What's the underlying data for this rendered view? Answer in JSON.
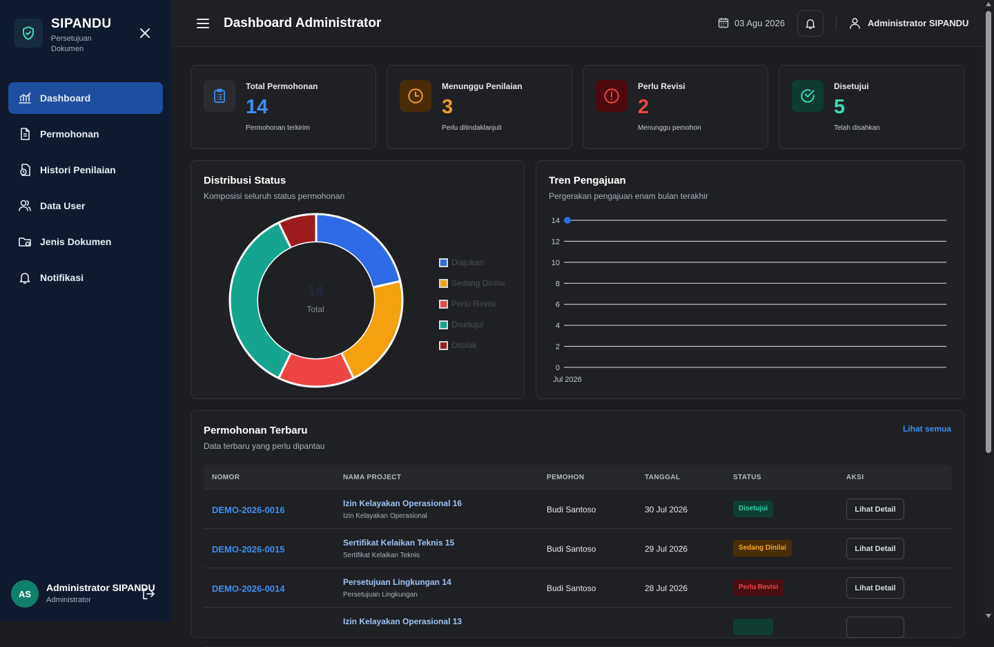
{
  "brand": {
    "title": "SIPANDU",
    "subtitle": "Persetujuan Dokumen"
  },
  "sidebar": {
    "items": [
      {
        "label": "Dashboard",
        "icon": "chart-line-icon",
        "active": true
      },
      {
        "label": "Permohonan",
        "icon": "document-icon",
        "active": false
      },
      {
        "label": "Histori Penilaian",
        "icon": "history-icon",
        "active": false
      },
      {
        "label": "Data User",
        "icon": "users-icon",
        "active": false
      },
      {
        "label": "Jenis Dokumen",
        "icon": "folder-icon",
        "active": false
      },
      {
        "label": "Notifikasi",
        "icon": "bell-icon",
        "active": false
      }
    ],
    "user": {
      "initials": "AS",
      "name": "Administrator SIPANDU",
      "role": "Administrator"
    }
  },
  "topbar": {
    "title": "Dashboard Administrator",
    "date": "03 Agu 2026",
    "user": "Administrator SIPANDU"
  },
  "stats": [
    {
      "label": "Total Permohonan",
      "value": "14",
      "sub": "Permohonan terkirim",
      "color": "#3d8ef0",
      "icon": "clipboard-icon"
    },
    {
      "label": "Menunggu Penilaian",
      "value": "3",
      "sub": "Perlu ditindaklanjuti",
      "color": "#f29b25",
      "icon": "clock-icon"
    },
    {
      "label": "Perlu Revisi",
      "value": "2",
      "sub": "Menunggu pemohon",
      "color": "#ef4444",
      "icon": "alert-circle-icon"
    },
    {
      "label": "Disetujui",
      "value": "5",
      "sub": "Telah disahkan",
      "color": "#3ddbb5",
      "icon": "check-circle-icon"
    }
  ],
  "distribusi": {
    "title": "Distribusi Status",
    "subtitle": "Komposisi seluruh status permohonan",
    "center_value": "14",
    "center_label": "Total"
  },
  "tren": {
    "title": "Tren Pengajuan",
    "subtitle": "Pergerakan pengajuan enam bulan terakhir"
  },
  "chart_data": [
    {
      "type": "pie",
      "categories": [
        "Diajukan",
        "Sedang Dinilai",
        "Perlu Revisi",
        "Disetujui",
        "Ditolak"
      ],
      "values": [
        3,
        3,
        2,
        5,
        1
      ],
      "colors": [
        "#2f6be6",
        "#f5a10f",
        "#ef4444",
        "#15a58f",
        "#9b1c1c"
      ],
      "legend_position": "right"
    },
    {
      "type": "line",
      "x": [
        "Jul 2026"
      ],
      "series": [
        {
          "values": [
            14
          ],
          "color": "#2f6be6"
        }
      ],
      "ylim": [
        0,
        14
      ],
      "yticks": [
        0,
        2,
        4,
        6,
        8,
        10,
        12,
        14
      ],
      "grid": true
    }
  ],
  "recent": {
    "title": "Permohonan Terbaru",
    "subtitle": "Data terbaru yang perlu dipantau",
    "link_all": "Lihat semua",
    "columns": [
      "NOMOR",
      "NAMA PROJECT",
      "PEMOHON",
      "TANGGAL",
      "STATUS",
      "AKSI"
    ],
    "rows": [
      {
        "nomor": "DEMO-2026-0016",
        "nama": "Izin Kelayakan Operasional 16",
        "jenis": "Izin Kelayakan Operasional",
        "pemohon": "Budi Santoso",
        "tanggal": "30 Jul 2026",
        "status": "Disetujui",
        "status_bg": "#0f3d32",
        "status_fg": "#34d6ab",
        "aksi": "Lihat Detail"
      },
      {
        "nomor": "DEMO-2026-0015",
        "nama": "Sertifikat Kelaikan Teknis 15",
        "jenis": "Sertifikat Kelaikan Teknis",
        "pemohon": "Budi Santoso",
        "tanggal": "29 Jul 2026",
        "status": "Sedang Dinilai",
        "status_bg": "#4a2e0a",
        "status_fg": "#f5a623",
        "aksi": "Lihat Detail"
      },
      {
        "nomor": "DEMO-2026-0014",
        "nama": "Persetujuan Lingkungan 14",
        "jenis": "Persetujuan Lingkungan",
        "pemohon": "Budi Santoso",
        "tanggal": "28 Jul 2026",
        "status": "Perlu Revisi",
        "status_bg": "#4a0f12",
        "status_fg": "#f04848",
        "aksi": "Lihat Detail"
      },
      {
        "nomor": "",
        "nama": "Izin Kelayakan Operasional 13",
        "jenis": "",
        "pemohon": "",
        "tanggal": "",
        "status": "",
        "status_bg": "#0f3d32",
        "status_fg": "#34d6ab",
        "aksi": ""
      }
    ]
  }
}
